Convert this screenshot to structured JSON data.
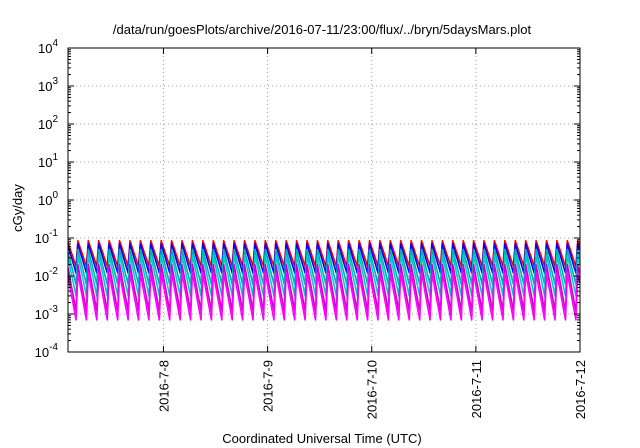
{
  "chart_data": {
    "type": "line",
    "title": "/data/run/goesPlots/archive/2016-07-11/23:00/flux/../bryn/5daysMars.plot",
    "xlabel": "Coordinated Universal Time (UTC)",
    "ylabel": "cGy/day",
    "yscale": "log",
    "ylim": [
      0.0001,
      10000
    ],
    "y_ticks": [
      {
        "value": 0.0001,
        "base": "10",
        "exp": "-4"
      },
      {
        "value": 0.001,
        "base": "10",
        "exp": "-3"
      },
      {
        "value": 0.01,
        "base": "10",
        "exp": "-2"
      },
      {
        "value": 0.1,
        "base": "10",
        "exp": "-1"
      },
      {
        "value": 1,
        "base": "10",
        "exp": "0"
      },
      {
        "value": 10,
        "base": "10",
        "exp": "1"
      },
      {
        "value": 100,
        "base": "10",
        "exp": "2"
      },
      {
        "value": 1000,
        "base": "10",
        "exp": "3"
      },
      {
        "value": 10000,
        "base": "10",
        "exp": "4"
      }
    ],
    "xlim": [
      "2016-07-07T02:00",
      "2016-07-12T00:00"
    ],
    "x_ticks": [
      {
        "value": "2016-07-08T00:00",
        "label": "2016-7-8"
      },
      {
        "value": "2016-07-09T00:00",
        "label": "2016-7-9"
      },
      {
        "value": "2016-07-10T00:00",
        "label": "2016-7-10"
      },
      {
        "value": "2016-07-11T00:00",
        "label": "2016-7-11"
      },
      {
        "value": "2016-07-12T00:00",
        "label": "2016-7-12"
      }
    ],
    "grid": true,
    "legend": "none",
    "cycle_hours": 2.4,
    "series": [
      {
        "color": "#ff0000",
        "peak": 0.085,
        "trough": 0.018
      },
      {
        "color": "#0000ff",
        "peak": 0.07,
        "trough": 0.012
      },
      {
        "color": "#00b0b0",
        "peak": 0.05,
        "trough": 0.006
      },
      {
        "color": "#00cccc",
        "peak": 0.035,
        "trough": 0.003
      },
      {
        "color": "#cc00cc",
        "peak": 0.02,
        "trough": 0.0012
      },
      {
        "color": "#ff00ff",
        "peak": 0.012,
        "trough": 0.0007
      }
    ]
  }
}
